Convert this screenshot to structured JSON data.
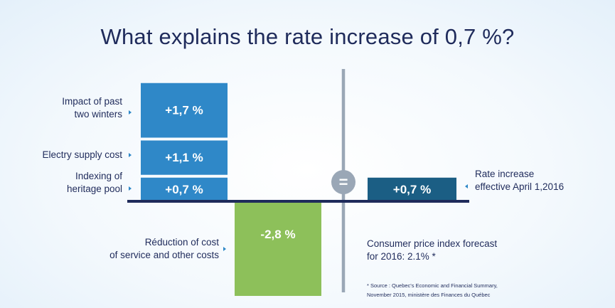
{
  "chart_data": {
    "type": "bar",
    "title": "What explains the rate increase of 0,7 %?",
    "stack": [
      {
        "label": "Indexing of heritage pool",
        "value": 0.7,
        "display": "+0,7 %",
        "color": "#2f88c8"
      },
      {
        "label": "Electry supply cost",
        "value": 1.1,
        "display": "+1,1 %",
        "color": "#2f88c8"
      },
      {
        "label": "Impact of past two winters",
        "value": 1.7,
        "display": "+1,7 %",
        "color": "#2f88c8"
      }
    ],
    "reduction": {
      "label": "Réduction of cost of service and other costs",
      "value": -2.8,
      "display": "-2,8 %",
      "color": "#8dc05a"
    },
    "result": {
      "label": "Rate increase effective April 1,2016",
      "value": 0.7,
      "display": "+0,7 %",
      "color": "#1b5e84"
    },
    "equals_symbol": "=",
    "baseline": 0
  },
  "labels": {
    "winters_line1": "Impact of past",
    "winters_line2": "two winters",
    "supply": "Electry supply cost",
    "heritage_line1": "Indexing of",
    "heritage_line2": "heritage pool",
    "reduction_line1": "Réduction of cost",
    "reduction_line2": "of service and other costs",
    "result_line1": "Rate increase",
    "result_line2": "effective April 1,2016"
  },
  "notes": {
    "cpi_line1": "Consumer price index forecast",
    "cpi_line2": "for 2016: 2.1% *",
    "source_line1": "* Source : Quebec's Economic and Financial Summary,",
    "source_line2": "November 2015, ministère des Finances du Québec"
  },
  "colors": {
    "navy": "#1f2b5b",
    "divider": "#9aa7b6"
  }
}
